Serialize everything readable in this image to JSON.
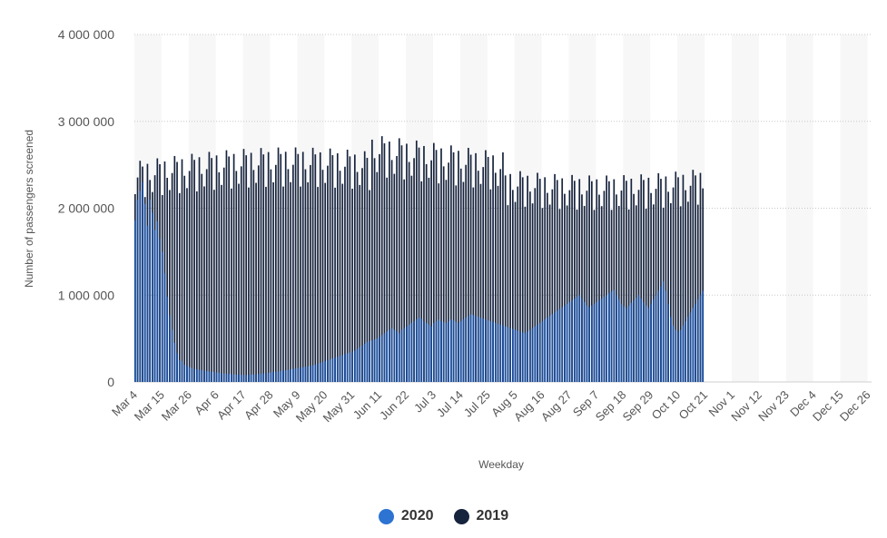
{
  "chart_data": {
    "type": "bar",
    "title": "",
    "xlabel": "Weekday",
    "ylabel": "Number of passengers screened",
    "ylim": [
      0,
      4000000
    ],
    "yticks": [
      0,
      1000000,
      2000000,
      3000000,
      4000000
    ],
    "ytick_labels": [
      "0",
      "1 000 000",
      "2 000 000",
      "3 000 000",
      "4 000 000"
    ],
    "grid": "horizontal dotted",
    "legend_position": "bottom-center",
    "xtick_labels": [
      "Mar 4",
      "Mar 15",
      "Mar 26",
      "Apr 6",
      "Apr 17",
      "Apr 28",
      "May 9",
      "May 20",
      "May 31",
      "Jun 11",
      "Jun 22",
      "Jul 3",
      "Jul 14",
      "Jul 25",
      "Aug 5",
      "Aug 16",
      "Aug 27",
      "Sep 7",
      "Sep 18",
      "Sep 29",
      "Oct 10",
      "Oct 21",
      "Nov 1",
      "Nov 12",
      "Nov 23",
      "Dec 4",
      "Dec 15",
      "Dec 26"
    ],
    "x_tick_step_days": 11,
    "series": [
      {
        "name": "2020",
        "color": "#2c73d2",
        "bar_color": "#154a9c",
        "start": "Mar 4",
        "note_values_in_passengers": true,
        "values": [
          1860000,
          2100000,
          2200000,
          2300000,
          2050000,
          1800000,
          2100000,
          1950000,
          1750000,
          1850000,
          1650000,
          1500000,
          1250000,
          980000,
          770000,
          600000,
          450000,
          330000,
          250000,
          240000,
          200000,
          180000,
          170000,
          160000,
          150000,
          145000,
          140000,
          135000,
          130000,
          125000,
          120000,
          118000,
          115000,
          110000,
          105000,
          100000,
          98000,
          95000,
          92000,
          90000,
          88000,
          86000,
          84000,
          82000,
          80000,
          80000,
          82000,
          85000,
          88000,
          90000,
          92000,
          95000,
          98000,
          100000,
          105000,
          110000,
          115000,
          118000,
          120000,
          125000,
          130000,
          135000,
          140000,
          145000,
          150000,
          155000,
          160000,
          165000,
          170000,
          175000,
          180000,
          185000,
          190000,
          200000,
          210000,
          220000,
          230000,
          240000,
          250000,
          260000,
          270000,
          280000,
          290000,
          300000,
          310000,
          320000,
          330000,
          340000,
          350000,
          360000,
          380000,
          400000,
          420000,
          440000,
          460000,
          470000,
          480000,
          490000,
          500000,
          520000,
          540000,
          560000,
          580000,
          600000,
          620000,
          600000,
          580000,
          560000,
          600000,
          620000,
          640000,
          660000,
          680000,
          700000,
          720000,
          740000,
          730000,
          700000,
          680000,
          660000,
          640000,
          680000,
          700000,
          720000,
          700000,
          690000,
          680000,
          700000,
          720000,
          710000,
          690000,
          680000,
          700000,
          720000,
          740000,
          760000,
          780000,
          770000,
          760000,
          750000,
          740000,
          730000,
          720000,
          710000,
          700000,
          690000,
          680000,
          670000,
          660000,
          650000,
          640000,
          630000,
          620000,
          610000,
          600000,
          590000,
          580000,
          570000,
          560000,
          580000,
          600000,
          620000,
          640000,
          660000,
          680000,
          700000,
          720000,
          740000,
          760000,
          780000,
          800000,
          820000,
          840000,
          860000,
          880000,
          900000,
          920000,
          940000,
          960000,
          980000,
          1000000,
          960000,
          920000,
          880000,
          860000,
          880000,
          900000,
          920000,
          940000,
          960000,
          980000,
          1000000,
          1020000,
          1040000,
          1060000,
          1000000,
          950000,
          900000,
          870000,
          850000,
          880000,
          910000,
          940000,
          970000,
          1000000,
          960000,
          920000,
          880000,
          850000,
          900000,
          950000,
          1000000,
          1050000,
          1100000,
          1160000,
          1050000,
          900000,
          750000,
          650000,
          600000,
          580000,
          600000,
          650000,
          700000,
          750000,
          800000,
          850000,
          900000,
          950000,
          1000000,
          1050000
        ]
      },
      {
        "name": "2019",
        "color": "#16233d",
        "bar_color": "#16233d",
        "start": "Mar 4",
        "values": []
      }
    ]
  },
  "legend": {
    "items": [
      {
        "label": "2020",
        "color": "#2c73d2"
      },
      {
        "label": "2019",
        "color": "#16233d"
      }
    ]
  }
}
